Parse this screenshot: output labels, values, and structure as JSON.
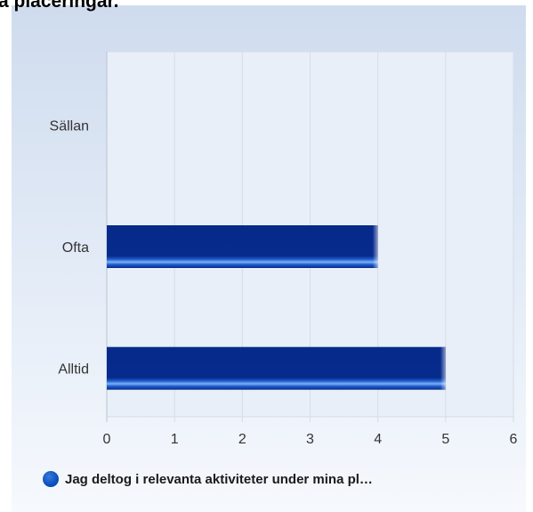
{
  "chart_data": {
    "type": "bar",
    "orientation": "horizontal",
    "title": "a placeringar.",
    "categories": [
      "Sällan",
      "Ofta",
      "Alltid"
    ],
    "series": [
      {
        "name": "Jag deltog i relevanta aktiviteter under mina pl…",
        "values": [
          0,
          4,
          5
        ],
        "color": "#062a8a"
      }
    ],
    "xlim": [
      0,
      6
    ],
    "xticks": [
      "0",
      "1",
      "2",
      "3",
      "4",
      "5",
      "6"
    ],
    "grid": true,
    "legend_position": "bottom-left"
  }
}
